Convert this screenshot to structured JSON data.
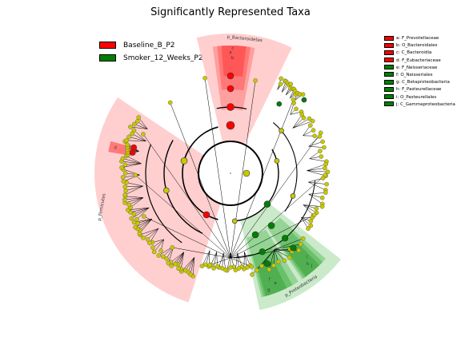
{
  "title": "Significantly Represented Taxa",
  "colors": {
    "red": "#ff0000",
    "green": "#008000",
    "yellow": "#c8c800",
    "redShade": "#ffbfbf",
    "greenShade": "#9fd89f"
  },
  "legend": [
    {
      "label": "Baseline_B_P2",
      "color": "#ff0000"
    },
    {
      "label": "Smoker_12_Weeks_P2",
      "color": "#008000"
    }
  ],
  "taxa": [
    {
      "label": "a: F_Prevotellaceae",
      "color": "#ff0000"
    },
    {
      "label": "b: O_Bacteroidales",
      "color": "#ff0000"
    },
    {
      "label": "c: C_Bacteroidia",
      "color": "#ff0000"
    },
    {
      "label": "d: F_Eubacteriaceae",
      "color": "#ff0000"
    },
    {
      "label": "e: F_Neisseriaceae",
      "color": "#008000"
    },
    {
      "label": "f: O_Neisseriales",
      "color": "#008000"
    },
    {
      "label": "g: C_Betaproteobacteria",
      "color": "#008000"
    },
    {
      "label": "h: F_Pasteurellaceae",
      "color": "#008000"
    },
    {
      "label": "i: O_Pasteurellales",
      "color": "#008000"
    },
    {
      "label": "j: C_Gammaproteobacteria",
      "color": "#008000"
    }
  ],
  "clade_labels": {
    "bacteroidetes": "p_Bacteroidetes",
    "firmicutes": "p_Firmicutes",
    "proteobacteria": "p_Proteobacteria",
    "letters": [
      "a",
      "b",
      "c",
      "d",
      "e",
      "f",
      "g",
      "h",
      "i",
      "j"
    ]
  }
}
